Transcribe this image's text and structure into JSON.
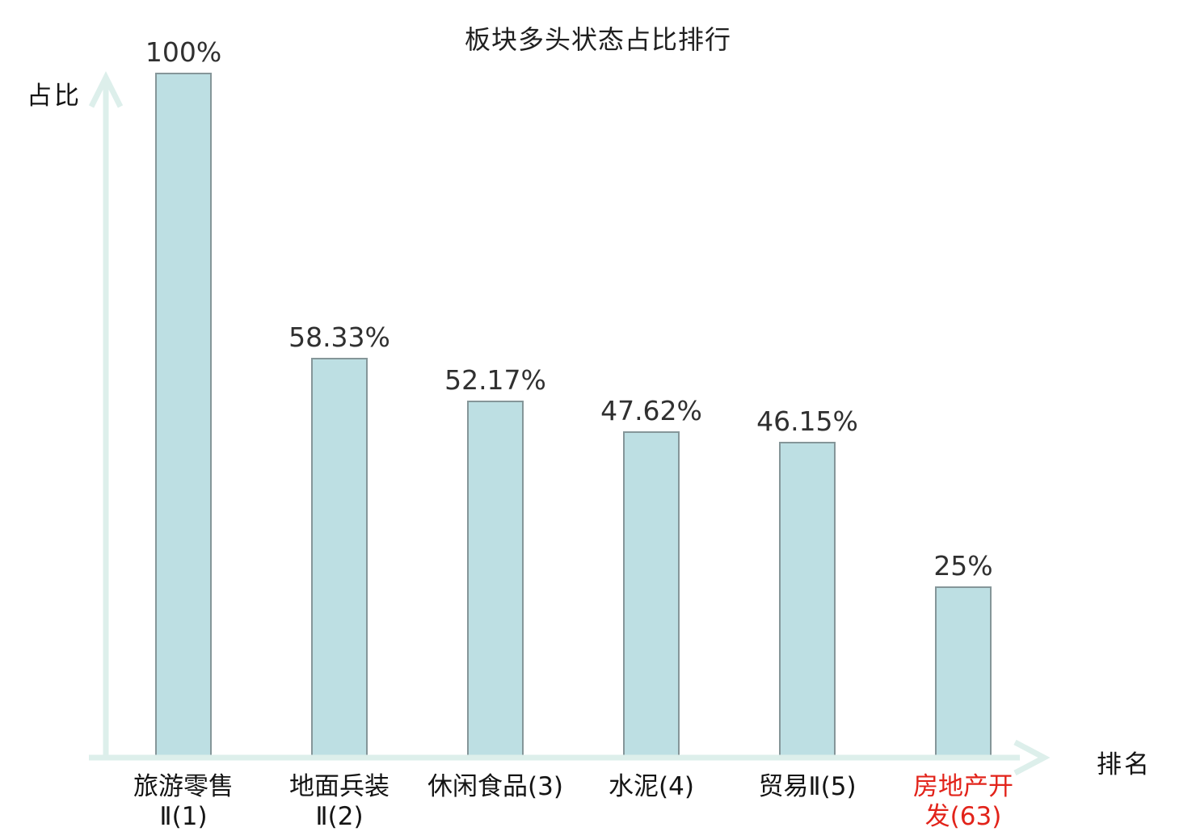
{
  "chart_data": {
    "type": "bar",
    "title": "板块多头状态占比排行",
    "xlabel": "排名",
    "ylabel": "占比",
    "ylim": [
      0,
      100
    ],
    "grid": false,
    "legend": false,
    "categories": [
      "旅游零售Ⅱ(1)",
      "地面兵装Ⅱ(2)",
      "休闲食品(3)",
      "水泥(4)",
      "贸易Ⅱ(5)",
      "房地产开发(63)"
    ],
    "category_lines": [
      [
        "旅游零售",
        "Ⅱ(1)"
      ],
      [
        "地面兵装",
        "Ⅱ(2)"
      ],
      [
        "休闲食品(3)"
      ],
      [
        "水泥(4)"
      ],
      [
        "贸易Ⅱ(5)"
      ],
      [
        "房地产开",
        "发(63)"
      ]
    ],
    "values": [
      100,
      58.33,
      52.17,
      47.62,
      46.15,
      25
    ],
    "value_labels": [
      "100%",
      "58.33%",
      "52.17%",
      "47.62%",
      "46.15%",
      "25%"
    ],
    "highlight_index": 5,
    "colors": {
      "bar_fill": "#bddfe3",
      "bar_border": "#859699",
      "axis_arrow": "#ddefeb",
      "title_text": "#202020",
      "value_label_text": "#303030",
      "category_label_text": "#141414",
      "highlight_category_text": "#e2231a",
      "background": "#ffffff"
    }
  }
}
